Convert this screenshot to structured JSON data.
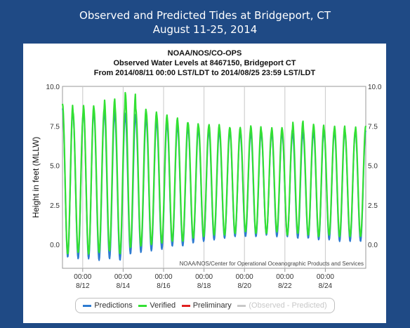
{
  "header": {
    "title_line1": "Observed and Predicted Tides at Bridgeport, CT",
    "title_line2": "August 11-25, 2014"
  },
  "colors": {
    "background": "#1f4a85",
    "predictions": "#2e7bd1",
    "verified": "#33e033",
    "preliminary": "#e02020",
    "observed_minus_predicted": "#c8c8c8"
  },
  "chart_data": {
    "type": "line",
    "title_lines": [
      "NOAA/NOS/CO-OPS",
      "Observed Water Levels at 8467150, Bridgeport CT",
      "From 2014/08/11 00:00 LST/LDT to 2014/08/25 23:59 LST/LDT"
    ],
    "ylabel": "Height in feet (MLLW)",
    "ylim": [
      -1.5,
      10
    ],
    "yticks": [
      "10.0",
      "7.5",
      "5.0",
      "2.5",
      "0.0"
    ],
    "ytick_values": [
      10,
      7.5,
      5,
      2.5,
      0
    ],
    "xlim": [
      "2014-08-11 00:00",
      "2014-08-25 23:59"
    ],
    "xticks": [
      {
        "time": "00:00",
        "date": "8/12"
      },
      {
        "time": "00:00",
        "date": "8/14"
      },
      {
        "time": "00:00",
        "date": "8/16"
      },
      {
        "time": "00:00",
        "date": "8/18"
      },
      {
        "time": "00:00",
        "date": "8/20"
      },
      {
        "time": "00:00",
        "date": "8/22"
      },
      {
        "time": "00:00",
        "date": "8/24"
      }
    ],
    "grid": "vertical lines at each labeled date",
    "credit": "NOAA/NOS/Center for Operational Oceanographic Products and Services",
    "legend": {
      "placement": "bottom",
      "entries": [
        "Predictions",
        "Verified",
        "Preliminary",
        "(Observed - Predicted)"
      ]
    },
    "series": [
      {
        "name": "Predictions",
        "semidiurnal_cycles": 29,
        "high_water": [
          8.6,
          8.3,
          8.6,
          8.3,
          8.5,
          8.1,
          8.3,
          8.0,
          7.9,
          7.7,
          7.6,
          7.4,
          7.4,
          7.2,
          7.2,
          7.1,
          7.2,
          7.0,
          7.1,
          7.0,
          7.1,
          7.0,
          7.1,
          7.0,
          7.2,
          7.1,
          7.2,
          7.1,
          7.2
        ],
        "low_water": [
          -0.8,
          -0.9,
          -0.9,
          -1.0,
          -0.9,
          -1.0,
          -0.6,
          -0.5,
          -0.4,
          -0.3,
          -0.1,
          -0.1,
          0.1,
          0.2,
          0.3,
          0.4,
          0.5,
          0.5,
          0.5,
          0.6,
          0.5,
          0.5,
          0.4,
          0.4,
          0.3,
          0.3,
          0.2,
          0.2,
          0.2
        ]
      },
      {
        "name": "Verified",
        "semidiurnal_cycles": 29,
        "high_water": [
          8.9,
          8.4,
          8.8,
          8.6,
          9.2,
          8.8,
          9.6,
          8.6,
          8.4,
          8.2,
          8.0,
          7.8,
          7.7,
          7.5,
          7.6,
          7.4,
          7.4,
          7.3,
          7.5,
          7.2,
          7.4,
          7.3,
          7.8,
          7.4,
          7.6,
          7.3,
          7.5,
          7.2,
          7.5
        ],
        "low_water": [
          -0.6,
          -0.5,
          -0.6,
          -0.5,
          -0.4,
          -0.6,
          -0.2,
          -0.1,
          0.0,
          0.1,
          0.2,
          0.2,
          0.4,
          0.5,
          0.6,
          0.6,
          0.7,
          0.8,
          0.7,
          0.7,
          0.8,
          0.6,
          0.7,
          0.6,
          0.5,
          0.6,
          0.5,
          0.5,
          0.5
        ]
      },
      {
        "name": "Preliminary",
        "values": []
      }
    ]
  }
}
